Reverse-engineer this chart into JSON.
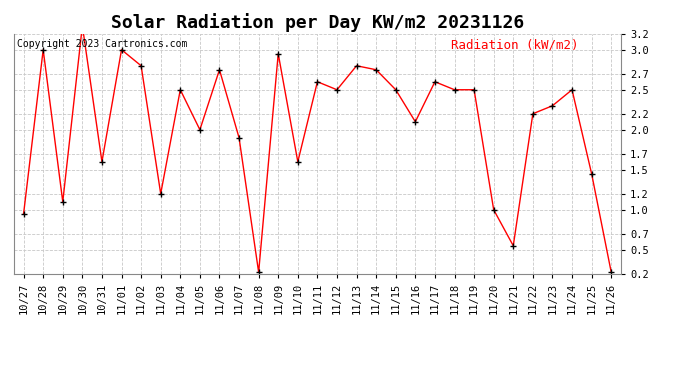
{
  "title": "Solar Radiation per Day KW/m2 20231126",
  "copyright_text": "Copyright 2023 Cartronics.com",
  "legend_text": "Radiation (kW/m2)",
  "dates": [
    "10/27",
    "10/28",
    "10/29",
    "10/30",
    "10/31",
    "11/01",
    "11/02",
    "11/03",
    "11/04",
    "11/05",
    "11/06",
    "11/07",
    "11/08",
    "11/09",
    "11/10",
    "11/11",
    "11/12",
    "11/13",
    "11/14",
    "11/15",
    "11/16",
    "11/17",
    "11/18",
    "11/19",
    "11/20",
    "11/21",
    "11/22",
    "11/23",
    "11/24",
    "11/25",
    "11/26"
  ],
  "values": [
    0.95,
    3.0,
    1.1,
    3.3,
    1.6,
    3.0,
    2.8,
    1.2,
    2.5,
    2.0,
    2.75,
    1.9,
    0.22,
    2.95,
    1.6,
    2.6,
    2.5,
    2.8,
    2.75,
    2.5,
    2.1,
    2.6,
    2.5,
    2.5,
    1.0,
    0.55,
    2.2,
    2.3,
    2.5,
    1.45,
    0.22
  ],
  "line_color": "#ff0000",
  "marker_color": "#000000",
  "background_color": "#ffffff",
  "grid_color": "#c8c8c8",
  "title_fontsize": 13,
  "ylim_min": 0.2,
  "ylim_max": 3.2,
  "yticks": [
    0.2,
    0.5,
    0.7,
    1.0,
    1.2,
    1.5,
    1.7,
    2.0,
    2.2,
    2.5,
    2.7,
    3.0,
    3.2
  ],
  "copyright_fontsize": 7,
  "legend_fontsize": 9,
  "tick_fontsize": 7.5
}
